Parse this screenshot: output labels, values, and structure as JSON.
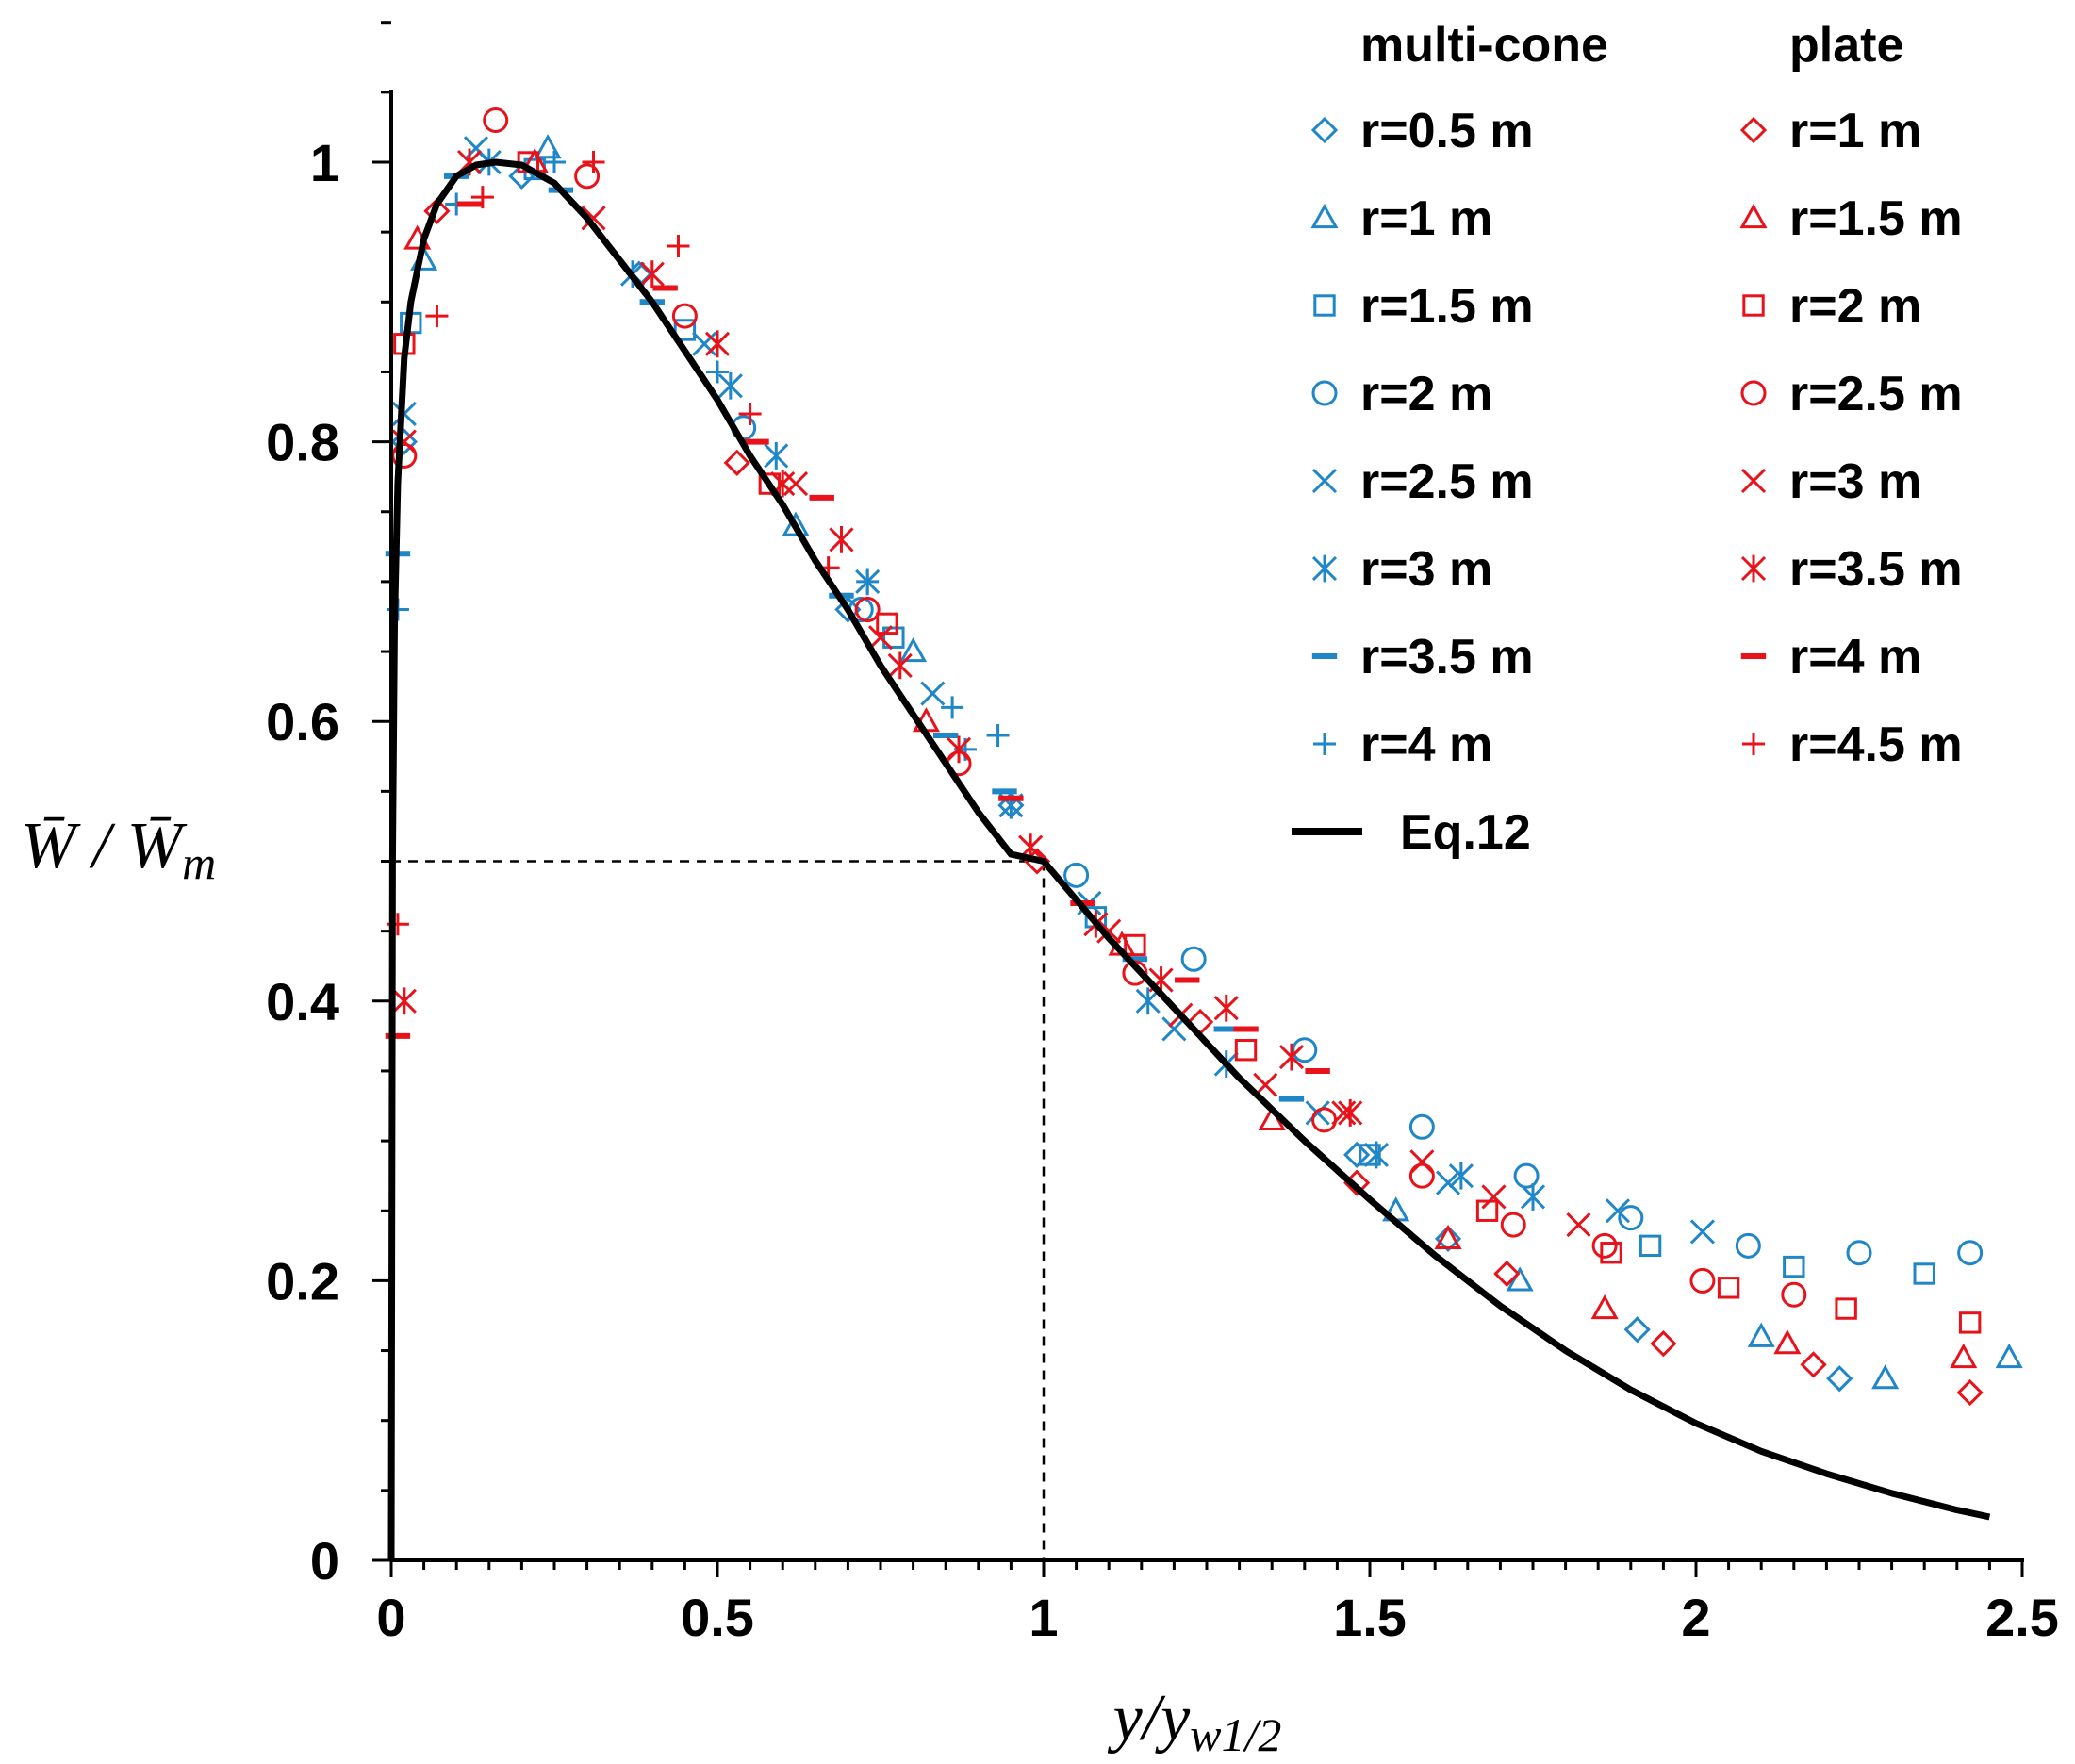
{
  "chart_data": {
    "type": "scatter",
    "xlabel": {
      "main": "y/y",
      "sub": "w1/2"
    },
    "ylabel": {
      "main": "W̄ / W̄",
      "sub": "m"
    },
    "xlim": [
      0,
      2.5
    ],
    "ylim": [
      0,
      1.05
    ],
    "xticks": [
      "0",
      "0.5",
      "1",
      "1.5",
      "2",
      "2.5"
    ],
    "xtick_values": [
      0,
      0.5,
      1,
      1.5,
      2,
      2.5
    ],
    "yticks": [
      "0",
      "0.2",
      "0.4",
      "0.6",
      "0.8",
      "1"
    ],
    "ytick_values": [
      0,
      0.2,
      0.4,
      0.6,
      0.8,
      1
    ],
    "grid": false,
    "legend_position": "top-right",
    "legend_groups": [
      {
        "title": "multi-cone",
        "color": "#1f86c8"
      },
      {
        "title": "plate",
        "color": "#e8121b"
      }
    ],
    "reference_lines": {
      "x": 1,
      "y": 0.5,
      "style": "dashed"
    },
    "curve": {
      "name": "Eq.12",
      "color": "#000000",
      "x": [
        0,
        0.002,
        0.005,
        0.01,
        0.02,
        0.03,
        0.05,
        0.07,
        0.1,
        0.13,
        0.16,
        0.2,
        0.25,
        0.3,
        0.35,
        0.4,
        0.45,
        0.5,
        0.55,
        0.6,
        0.65,
        0.7,
        0.75,
        0.8,
        0.85,
        0.9,
        0.95,
        1.0,
        1.1,
        1.2,
        1.3,
        1.4,
        1.5,
        1.6,
        1.7,
        1.8,
        1.9,
        2.0,
        2.1,
        2.2,
        2.3,
        2.4,
        2.45
      ],
      "y": [
        0,
        0.5,
        0.67,
        0.77,
        0.86,
        0.9,
        0.945,
        0.97,
        0.99,
        0.998,
        1.0,
        0.998,
        0.985,
        0.96,
        0.93,
        0.9,
        0.865,
        0.83,
        0.79,
        0.755,
        0.715,
        0.68,
        0.64,
        0.605,
        0.57,
        0.535,
        0.505,
        0.5,
        0.445,
        0.395,
        0.345,
        0.3,
        0.258,
        0.218,
        0.182,
        0.15,
        0.122,
        0.098,
        0.078,
        0.062,
        0.048,
        0.036,
        0.031
      ]
    },
    "series": [
      {
        "name": "r=0.5 m",
        "group": "multi-cone",
        "marker": "diamond",
        "color": "#1f86c8",
        "x": [
          0.02,
          0.2,
          0.38,
          0.7,
          0.95,
          1.48,
          1.62,
          1.91,
          2.22
        ],
        "y": [
          0.8,
          0.99,
          0.92,
          0.68,
          0.54,
          0.29,
          0.23,
          0.165,
          0.13
        ]
      },
      {
        "name": "r=1 m",
        "group": "multi-cone",
        "marker": "triangle",
        "color": "#1f86c8",
        "x": [
          0.05,
          0.24,
          0.62,
          0.8,
          1.54,
          1.73,
          2.1,
          2.29,
          2.48
        ],
        "y": [
          0.93,
          1.01,
          0.74,
          0.65,
          0.25,
          0.2,
          0.16,
          0.13,
          0.145
        ]
      },
      {
        "name": "r=1.5 m",
        "group": "multi-cone",
        "marker": "square",
        "color": "#1f86c8",
        "x": [
          0.03,
          0.22,
          0.45,
          0.77,
          1.08,
          1.5,
          1.93,
          2.15,
          2.35
        ],
        "y": [
          0.885,
          0.995,
          0.88,
          0.66,
          0.46,
          0.29,
          0.225,
          0.21,
          0.205
        ]
      },
      {
        "name": "r=2 m",
        "group": "multi-cone",
        "marker": "circle",
        "color": "#1f86c8",
        "x": [
          0.54,
          0.72,
          1.05,
          1.23,
          1.4,
          1.58,
          1.74,
          1.9,
          2.08,
          2.25,
          2.42
        ],
        "y": [
          0.81,
          0.68,
          0.49,
          0.43,
          0.365,
          0.31,
          0.275,
          0.245,
          0.225,
          0.22,
          0.22
        ]
      },
      {
        "name": "r=2.5 m",
        "group": "multi-cone",
        "marker": "x",
        "color": "#1f86c8",
        "x": [
          0.02,
          0.13,
          0.48,
          0.83,
          1.07,
          1.2,
          1.42,
          1.62,
          1.88,
          2.01
        ],
        "y": [
          0.82,
          1.01,
          0.87,
          0.62,
          0.47,
          0.38,
          0.32,
          0.27,
          0.25,
          0.235
        ]
      },
      {
        "name": "r=3 m",
        "group": "multi-cone",
        "marker": "asterisk",
        "color": "#1f86c8",
        "x": [
          0.15,
          0.37,
          0.52,
          0.59,
          0.73,
          0.95,
          1.16,
          1.28,
          1.51,
          1.64,
          1.75
        ],
        "y": [
          1.0,
          0.92,
          0.84,
          0.79,
          0.7,
          0.54,
          0.4,
          0.355,
          0.29,
          0.275,
          0.26
        ]
      },
      {
        "name": "r=3.5 m",
        "group": "multi-cone",
        "marker": "dash",
        "color": "#1f86c8",
        "x": [
          0.01,
          0.1,
          0.26,
          0.4,
          0.69,
          0.85,
          0.94,
          1.14,
          1.28,
          1.38
        ],
        "y": [
          0.72,
          0.99,
          0.98,
          0.9,
          0.69,
          0.59,
          0.55,
          0.43,
          0.38,
          0.33
        ]
      },
      {
        "name": "r=4 m",
        "group": "multi-cone",
        "marker": "plus",
        "color": "#1f86c8",
        "x": [
          0.01,
          0.1,
          0.25,
          0.5,
          0.73,
          0.86,
          0.93,
          0.88
        ],
        "y": [
          0.68,
          0.97,
          1.0,
          0.85,
          0.7,
          0.61,
          0.59,
          0.58
        ]
      },
      {
        "name": "r=1 m",
        "group": "plate",
        "marker": "diamond",
        "color": "#e8121b",
        "x": [
          0.07,
          0.53,
          0.99,
          1.24,
          1.48,
          1.71,
          1.95,
          2.18,
          2.42
        ],
        "y": [
          0.965,
          0.785,
          0.5,
          0.385,
          0.27,
          0.205,
          0.155,
          0.14,
          0.12
        ]
      },
      {
        "name": "r=1.5 m",
        "group": "plate",
        "marker": "triangle",
        "color": "#e8121b",
        "x": [
          0.04,
          0.22,
          0.82,
          1.12,
          1.35,
          1.62,
          1.86,
          2.14,
          2.41
        ],
        "y": [
          0.945,
          1.0,
          0.6,
          0.44,
          0.315,
          0.23,
          0.18,
          0.155,
          0.145
        ]
      },
      {
        "name": "r=2 m",
        "group": "plate",
        "marker": "square",
        "color": "#e8121b",
        "x": [
          0.02,
          0.21,
          0.58,
          0.76,
          1.14,
          1.31,
          1.68,
          1.87,
          2.05,
          2.23,
          2.42
        ],
        "y": [
          0.87,
          1.0,
          0.77,
          0.67,
          0.44,
          0.365,
          0.25,
          0.22,
          0.195,
          0.18,
          0.17
        ]
      },
      {
        "name": "r=2.5 m",
        "group": "plate",
        "marker": "circle",
        "color": "#e8121b",
        "x": [
          0.02,
          0.16,
          0.3,
          0.45,
          0.73,
          0.87,
          1.14,
          1.43,
          1.58,
          1.72,
          1.86,
          2.01,
          2.15
        ],
        "y": [
          0.79,
          1.03,
          0.99,
          0.89,
          0.68,
          0.57,
          0.42,
          0.315,
          0.275,
          0.24,
          0.225,
          0.2,
          0.19
        ]
      },
      {
        "name": "r=3 m",
        "group": "plate",
        "marker": "x",
        "color": "#e8121b",
        "x": [
          0.02,
          0.31,
          0.62,
          0.75,
          1.1,
          1.21,
          1.34,
          1.46,
          1.58,
          1.69,
          1.82
        ],
        "y": [
          0.8,
          0.96,
          0.77,
          0.66,
          0.45,
          0.39,
          0.34,
          0.32,
          0.285,
          0.26,
          0.24
        ]
      },
      {
        "name": "r=3.5 m",
        "group": "plate",
        "marker": "asterisk",
        "color": "#e8121b",
        "x": [
          0.02,
          0.12,
          0.4,
          0.5,
          0.6,
          0.69,
          0.78,
          0.87,
          0.98,
          1.08,
          1.18,
          1.28,
          1.38,
          1.47
        ],
        "y": [
          0.4,
          1.0,
          0.92,
          0.87,
          0.77,
          0.73,
          0.64,
          0.58,
          0.51,
          0.455,
          0.415,
          0.395,
          0.36,
          0.32
        ]
      },
      {
        "name": "r=4 m",
        "group": "plate",
        "marker": "dash",
        "color": "#e8121b",
        "x": [
          0.01,
          0.12,
          0.42,
          0.56,
          0.66,
          0.95,
          1.06,
          1.22,
          1.31,
          1.42
        ],
        "y": [
          0.375,
          0.97,
          0.91,
          0.8,
          0.76,
          0.545,
          0.47,
          0.415,
          0.38,
          0.35
        ]
      },
      {
        "name": "r=4.5 m",
        "group": "plate",
        "marker": "plus",
        "color": "#e8121b",
        "x": [
          0.01,
          0.07,
          0.14,
          0.31,
          0.44,
          0.55,
          0.67
        ],
        "y": [
          0.455,
          0.89,
          0.975,
          1.0,
          0.94,
          0.82,
          0.71
        ]
      }
    ],
    "legend": {
      "columns": [
        {
          "title": "multi-cone",
          "entries": [
            "r=0.5 m",
            "r=1 m",
            "r=1.5 m",
            "r=2 m",
            "r=2.5 m",
            "r=3 m",
            "r=3.5 m",
            "r=4 m"
          ]
        },
        {
          "title": "plate",
          "entries": [
            "r=1 m",
            "r=1.5 m",
            "r=2 m",
            "r=2.5 m",
            "r=3 m",
            "r=3.5 m",
            "r=4 m",
            "r=4.5 m"
          ]
        }
      ],
      "curve_label": "Eq.12"
    }
  }
}
